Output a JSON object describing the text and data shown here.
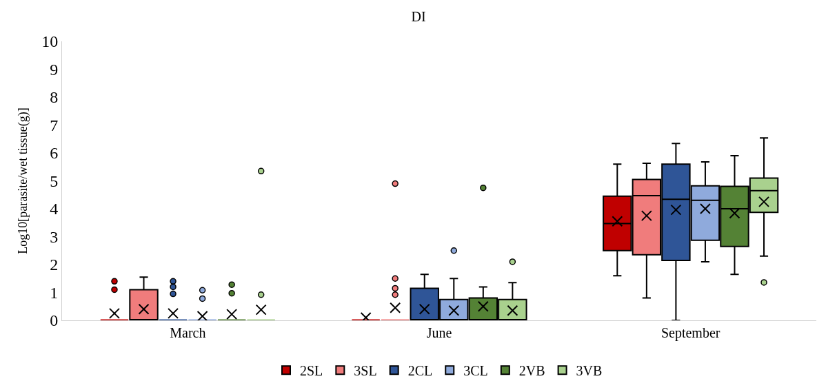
{
  "chart_data": {
    "type": "box",
    "title": "DI",
    "ylabel": "Log10[parasite/wet tissue(g)]",
    "categories": [
      "March",
      "June",
      "September"
    ],
    "ylim": [
      0,
      10
    ],
    "yticks": [
      0,
      1,
      2,
      3,
      4,
      5,
      6,
      7,
      8,
      9,
      10
    ],
    "legend": "bottom",
    "marker": "circle",
    "series": [
      {
        "name": "2SL",
        "color": "#c00000",
        "boxes": [
          {
            "low": 0,
            "q1": 0,
            "median": 0,
            "q3": 0,
            "high": 0,
            "mean": 0.25,
            "outliers": [
              1.4,
              1.1
            ]
          },
          {
            "low": 0,
            "q1": 0,
            "median": 0,
            "q3": 0,
            "high": 0,
            "mean": 0.1
          },
          {
            "low": 1.6,
            "q1": 2.5,
            "median": 3.47,
            "q3": 4.45,
            "high": 5.6,
            "mean": 3.55
          }
        ]
      },
      {
        "name": "3SL",
        "color": "#f07c7c",
        "boxes": [
          {
            "low": 0,
            "q1": 0,
            "median": 0,
            "q3": 1.1,
            "high": 1.55,
            "mean": 0.4
          },
          {
            "low": 0,
            "q1": 0,
            "median": 0,
            "q3": 0,
            "high": 0,
            "mean": 0.45,
            "outliers": [
              4.9,
              1.5,
              1.15,
              0.92
            ]
          },
          {
            "low": 0.8,
            "q1": 2.35,
            "median": 4.47,
            "q3": 5.05,
            "high": 5.63,
            "mean": 3.75
          }
        ]
      },
      {
        "name": "2CL",
        "color": "#2f5597",
        "boxes": [
          {
            "low": 0,
            "q1": 0,
            "median": 0,
            "q3": 0,
            "high": 0,
            "mean": 0.25,
            "outliers": [
              1.4,
              1.2,
              0.95
            ]
          },
          {
            "low": 0,
            "q1": 0,
            "median": 0,
            "q3": 1.15,
            "high": 1.65,
            "mean": 0.4
          },
          {
            "low": 0,
            "q1": 2.15,
            "median": 4.34,
            "q3": 5.6,
            "high": 6.34,
            "mean": 3.96
          }
        ]
      },
      {
        "name": "3CL",
        "color": "#8faadc",
        "boxes": [
          {
            "low": 0,
            "q1": 0,
            "median": 0,
            "q3": 0,
            "high": 0,
            "mean": 0.15,
            "outliers": [
              1.08,
              0.78
            ]
          },
          {
            "low": 0,
            "q1": 0,
            "median": 0,
            "q3": 0.75,
            "high": 1.5,
            "mean": 0.35,
            "outliers": [
              2.5
            ]
          },
          {
            "low": 2.1,
            "q1": 2.87,
            "median": 4.3,
            "q3": 4.82,
            "high": 5.68,
            "mean": 4.0
          }
        ]
      },
      {
        "name": "2VB",
        "color": "#548235",
        "boxes": [
          {
            "low": 0,
            "q1": 0,
            "median": 0,
            "q3": 0,
            "high": 0,
            "mean": 0.22,
            "outliers": [
              1.28,
              0.97
            ]
          },
          {
            "low": 0,
            "q1": 0,
            "median": 0,
            "q3": 0.8,
            "high": 1.2,
            "mean": 0.5,
            "outliers": [
              4.75
            ]
          },
          {
            "low": 1.65,
            "q1": 2.65,
            "median": 4.0,
            "q3": 4.8,
            "high": 5.9,
            "mean": 3.84
          }
        ]
      },
      {
        "name": "3VB",
        "color": "#a9d18e",
        "boxes": [
          {
            "low": 0,
            "q1": 0,
            "median": 0,
            "q3": 0,
            "high": 0,
            "mean": 0.38,
            "outliers": [
              5.35,
              0.92
            ]
          },
          {
            "low": 0,
            "q1": 0,
            "median": 0,
            "q3": 0.75,
            "high": 1.35,
            "mean": 0.35,
            "outliers": [
              2.1
            ]
          },
          {
            "low": 2.3,
            "q1": 3.87,
            "median": 4.65,
            "q3": 5.1,
            "high": 6.54,
            "mean": 4.25,
            "outliers": [
              1.36
            ]
          }
        ]
      }
    ]
  }
}
